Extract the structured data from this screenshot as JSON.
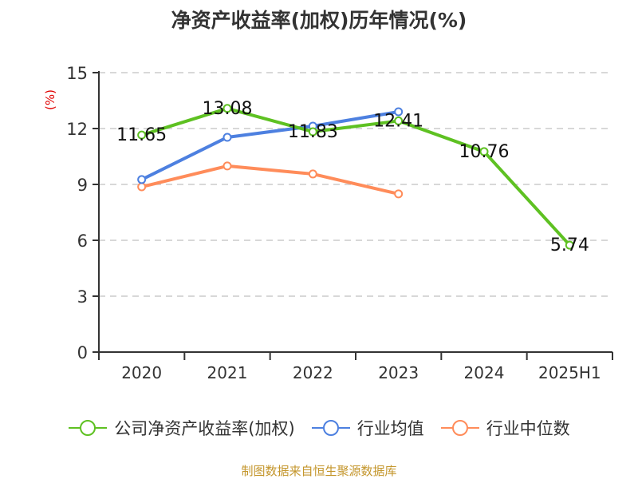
{
  "chart_data": {
    "type": "line",
    "title": "净资产收益率(加权)历年情况(%)",
    "ylabel": "(%)",
    "xlabel": "",
    "categories": [
      "2020",
      "2021",
      "2022",
      "2023",
      "2024",
      "2025H1"
    ],
    "ylim": [
      0,
      15
    ],
    "yticks": [
      0,
      3,
      6,
      9,
      12,
      15
    ],
    "grid": true,
    "legend_position": "bottom",
    "series": [
      {
        "name": "公司净资产收益率(加权)",
        "color": "#5ec122",
        "values": [
          11.65,
          13.08,
          11.83,
          12.41,
          10.76,
          5.74
        ],
        "show_labels": true
      },
      {
        "name": "行业均值",
        "color": "#4d80e0",
        "values": [
          9.26,
          11.53,
          12.13,
          12.9,
          null,
          null
        ],
        "show_labels": false
      },
      {
        "name": "行业中位数",
        "color": "#ff8c5a",
        "values": [
          8.87,
          9.99,
          9.56,
          8.49,
          null,
          null
        ],
        "show_labels": false
      }
    ]
  },
  "source": "制图数据来自恒生聚源数据库"
}
